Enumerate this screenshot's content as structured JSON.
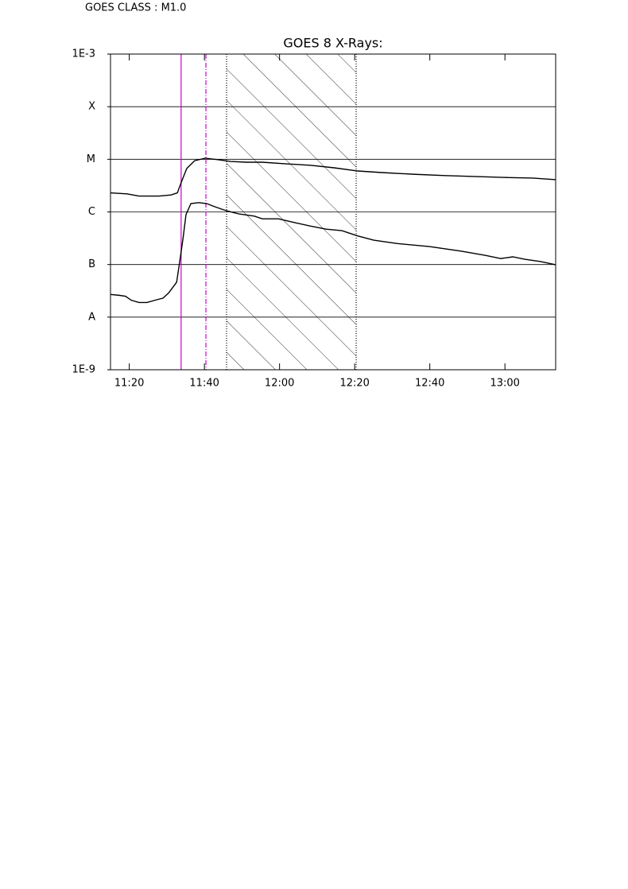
{
  "chart_data": {
    "type": "line",
    "annotation": "GOES CLASS : M1.0",
    "title": "GOES 8 X-Rays:",
    "log_scale": true,
    "grid": true,
    "xlim": [
      675,
      793.5
    ],
    "xticks": [
      {
        "value": 680,
        "label": "11:20"
      },
      {
        "value": 700,
        "label": "11:40"
      },
      {
        "value": 720,
        "label": "12:00"
      },
      {
        "value": 740,
        "label": "12:20"
      },
      {
        "value": 760,
        "label": "12:40"
      },
      {
        "value": 780,
        "label": "13:00"
      }
    ],
    "ylim": [
      1e-09,
      0.001
    ],
    "yticks": [
      {
        "value": 1e-09,
        "label": "1E-9"
      },
      {
        "value": 1e-08,
        "label": "A"
      },
      {
        "value": 1e-07,
        "label": "B"
      },
      {
        "value": 1e-06,
        "label": "C"
      },
      {
        "value": 1e-05,
        "label": "M"
      },
      {
        "value": 0.0001,
        "label": "X"
      },
      {
        "value": 0.001,
        "label": "1E-3"
      }
    ],
    "series": [
      {
        "color": "#000000",
        "x": [
          675,
          679.4,
          682.6,
          687.9,
          691.1,
          692.8,
          693.8,
          695.3,
          697.4,
          700.2,
          703.8,
          707,
          711.2,
          715.4,
          721.8,
          728.1,
          734.5,
          740.8,
          747.2,
          755.6,
          764.1,
          772.6,
          781,
          787.4,
          793.5
        ],
        "values": [
          2.3e-06,
          2.2e-06,
          2e-06,
          2e-06,
          2.1e-06,
          2.3e-06,
          3.6e-06,
          6.7e-06,
          9.4e-06,
          1.05e-05,
          9.8e-06,
          9.1e-06,
          8.8e-06,
          8.8e-06,
          8.2e-06,
          7.7e-06,
          6.9e-06,
          6e-06,
          5.6e-06,
          5.2e-06,
          4.9e-06,
          4.7e-06,
          4.5e-06,
          4.4e-06,
          4.1e-06
        ]
      },
      {
        "color": "#000000",
        "x": [
          675,
          677.3,
          679,
          680.5,
          682.6,
          684.7,
          686.9,
          689,
          690.5,
          692.6,
          693.4,
          694.3,
          695.1,
          696.4,
          698.5,
          700.6,
          702.7,
          705.9,
          709.1,
          713.3,
          715.4,
          719.7,
          723.9,
          728.1,
          732.4,
          736.6,
          740.8,
          745.1,
          751.4,
          759.9,
          768.3,
          774.7,
          778.9,
          782.1,
          785.3,
          789.5,
          793.5
        ],
        "values": [
          2.7e-08,
          2.6e-08,
          2.5e-08,
          2.1e-08,
          1.9e-08,
          1.9e-08,
          2.1e-08,
          2.3e-08,
          2.9e-08,
          4.6e-08,
          1.1e-07,
          3.1e-07,
          8.9e-07,
          1.44e-06,
          1.5e-06,
          1.44e-06,
          1.26e-06,
          1.05e-06,
          9.2e-07,
          8.3e-07,
          7.4e-07,
          7.4e-07,
          6.3e-07,
          5.4e-07,
          4.7e-07,
          4.4e-07,
          3.5e-07,
          2.9e-07,
          2.5e-07,
          2.2e-07,
          1.8e-07,
          1.5e-07,
          1.3e-07,
          1.4e-07,
          1.26e-07,
          1.14e-07,
          9.9e-08
        ]
      }
    ],
    "events": [
      {
        "x": 693.8,
        "color": "#cc00cc",
        "style": "solid"
      },
      {
        "x": 700.4,
        "color": "#cc00cc",
        "style": "dashdot"
      },
      {
        "x": 705.9,
        "color": "#000000",
        "style": "dotted"
      },
      {
        "x": 740.4,
        "color": "#000000",
        "style": "dotted"
      }
    ],
    "shaded": [
      705.9,
      740.4
    ]
  }
}
